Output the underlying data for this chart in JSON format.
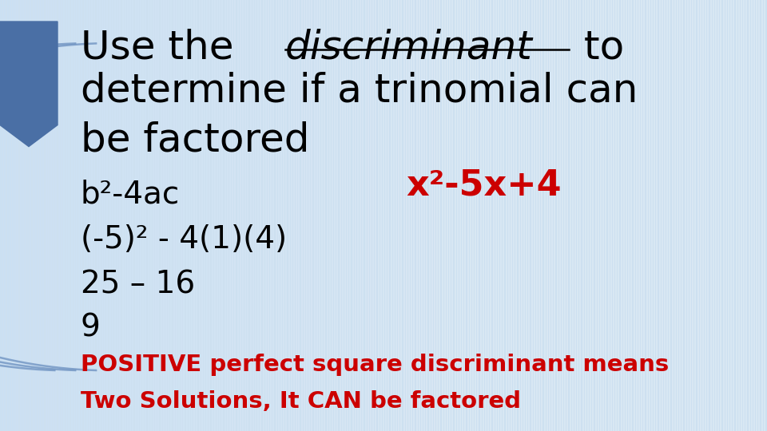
{
  "bg_color": "#cde0f0",
  "title_line1_a": "Use the ",
  "title_discriminant": "discriminant",
  "title_line1_b": " to",
  "title_line2": "determine if a trinomial can",
  "title_line3": "be factored",
  "expression": "x²-5x+4",
  "expr_color": "#cc0000",
  "line_b2": "b²-4ac",
  "line_calc": "(-5)² - 4(1)(4)",
  "line_num1": "25 – 16",
  "line_num2": "9",
  "conclusion1": "POSITIVE perfect square discriminant means",
  "conclusion2": "Two Solutions, It CAN be factored",
  "conclusion_color": "#cc0000",
  "text_color": "#000000",
  "left_bar_color": "#4a6fa5",
  "font_size_title": 36,
  "font_size_body": 28,
  "font_size_expr": 32,
  "font_size_conclusion": 21
}
